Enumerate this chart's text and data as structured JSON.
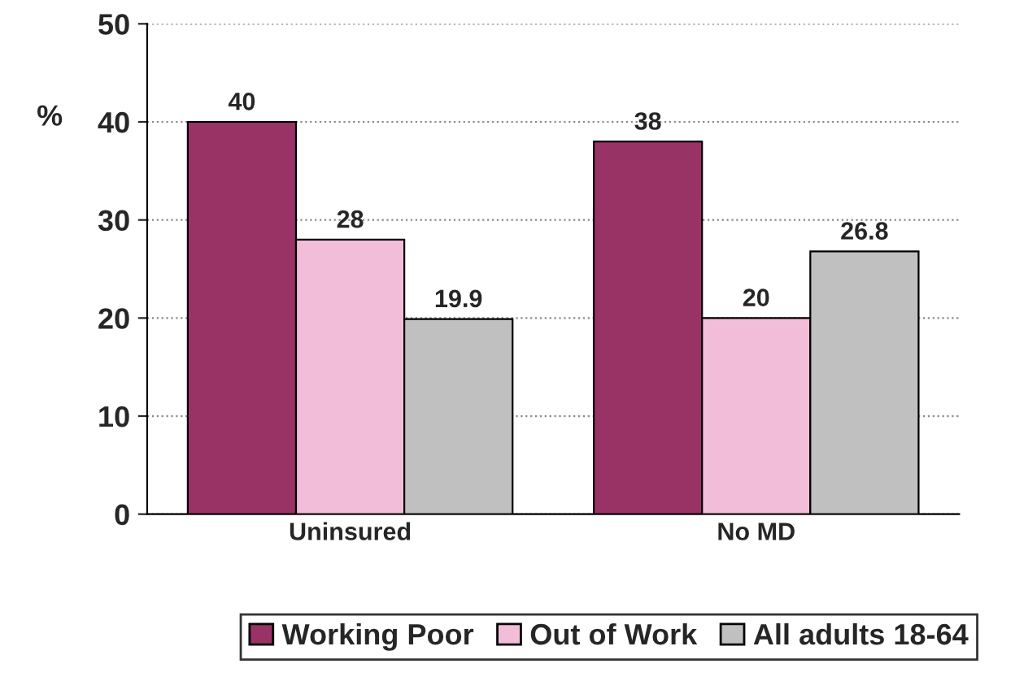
{
  "chart_data": {
    "type": "bar",
    "ylabel": "%",
    "categories": [
      "Uninsured",
      "No MD"
    ],
    "series": [
      {
        "name": "Working Poor",
        "color": "#993366",
        "values": [
          40,
          38
        ]
      },
      {
        "name": "Out of Work",
        "color": "#f2bdd8",
        "values": [
          28,
          20
        ]
      },
      {
        "name": "All adults 18-64",
        "color": "#c0c0c0",
        "values": [
          19.9,
          26.8
        ]
      }
    ],
    "ylim": [
      0,
      50
    ],
    "yticks": [
      0,
      10,
      20,
      30,
      40,
      50
    ],
    "grid": "y",
    "legend": "bottom",
    "data_labels": true
  }
}
